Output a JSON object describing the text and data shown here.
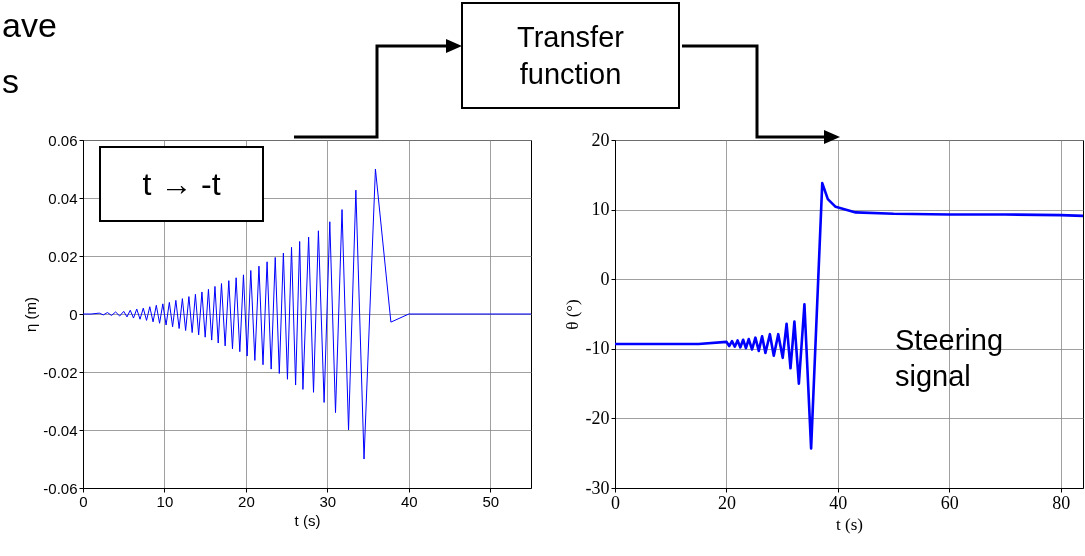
{
  "chart_data": [
    {
      "type": "line",
      "xlabel": "t (s)",
      "ylabel": "η (m)",
      "xlim": [
        0,
        55
      ],
      "ylim": [
        -0.06,
        0.06
      ],
      "xticks": [
        0,
        10,
        20,
        30,
        40,
        50
      ],
      "yticks": [
        -0.06,
        -0.04,
        -0.02,
        0,
        0.02,
        0.04,
        0.06
      ],
      "grid": true,
      "annotations": [
        "ave",
        "s",
        "t → -t",
        "Transfer function"
      ],
      "series": [
        {
          "color": "#0000ff",
          "x": [
            0,
            1,
            2.0,
            2.5,
            3.0,
            3.5,
            4.0,
            4.5,
            5.0,
            5.4,
            5.8,
            6.2,
            6.6,
            7.0,
            7.4,
            7.8,
            8.2,
            8.6,
            9.0,
            9.4,
            9.8,
            10.2,
            10.6,
            11.0,
            11.4,
            11.8,
            12.2,
            12.6,
            13.0,
            13.4,
            13.8,
            14.2,
            14.6,
            15.0,
            15.4,
            15.8,
            16.2,
            16.6,
            17.0,
            17.45,
            17.9,
            18.35,
            18.8,
            19.25,
            19.7,
            20.15,
            20.6,
            21.1,
            21.6,
            22.1,
            22.6,
            23.1,
            23.6,
            24.1,
            24.6,
            25.1,
            25.6,
            26.1,
            26.6,
            27.0,
            27.7,
            28.3,
            28.9,
            29.6,
            30.3,
            31.0,
            31.8,
            32.6,
            33.5,
            34.5,
            35.9,
            37.8,
            40,
            55
          ],
          "values": [
            0,
            0,
            0.0003,
            -0.0003,
            0.0005,
            -0.0005,
            0.0007,
            -0.0007,
            0.0009,
            -0.001,
            0.0013,
            -0.0014,
            0.0017,
            -0.0018,
            0.002,
            -0.0022,
            0.0025,
            -0.0027,
            0.003,
            -0.0032,
            0.0035,
            -0.0038,
            0.004,
            -0.0044,
            0.0047,
            -0.005,
            0.0053,
            -0.0057,
            0.006,
            -0.0064,
            0.0068,
            -0.0072,
            0.0076,
            -0.008,
            0.0085,
            -0.009,
            0.0095,
            -0.01,
            0.0105,
            -0.011,
            0.0115,
            -0.012,
            0.0125,
            -0.013,
            0.0135,
            -0.0145,
            0.015,
            -0.016,
            0.0165,
            -0.0175,
            0.018,
            -0.019,
            0.0195,
            -0.0205,
            0.021,
            -0.0225,
            0.023,
            -0.0245,
            0.025,
            -0.026,
            0.0265,
            -0.027,
            0.0287,
            -0.0305,
            0.0318,
            -0.034,
            0.036,
            -0.04,
            0.0427,
            -0.05,
            0.05,
            -0.0028,
            0,
            0
          ]
        }
      ]
    },
    {
      "type": "line",
      "xlabel": "t (s)",
      "ylabel": "θ (°)",
      "xlim": [
        0,
        84
      ],
      "ylim": [
        -30,
        20
      ],
      "xticks": [
        0,
        20,
        40,
        60,
        80
      ],
      "yticks": [
        -30,
        -20,
        -10,
        0,
        10,
        20
      ],
      "grid": true,
      "annotations": [
        "Steering signal"
      ],
      "series": [
        {
          "color": "#0000ff",
          "x": [
            0,
            15,
            20.0,
            20.5,
            21.0,
            21.5,
            22.0,
            22.5,
            23.0,
            23.5,
            24.0,
            24.6,
            25.2,
            25.8,
            26.4,
            27.0,
            27.8,
            28.5,
            29.3,
            30.1,
            30.8,
            31.5,
            32.2,
            33.0,
            34.0,
            35.2,
            37.2,
            38.2,
            39.6,
            43.2,
            50,
            60,
            70,
            80,
            84
          ],
          "values": [
            -9.3,
            -9.3,
            -9.0,
            -9.6,
            -8.9,
            -9.7,
            -8.8,
            -9.8,
            -8.7,
            -9.9,
            -8.6,
            -10.1,
            -8.4,
            -10.3,
            -8.2,
            -10.6,
            -7.9,
            -11.0,
            -7.9,
            -11.3,
            -6.4,
            -12.8,
            -6.1,
            -15.0,
            -3.6,
            -24.3,
            13.8,
            11.5,
            10.4,
            9.6,
            9.4,
            9.3,
            9.3,
            9.2,
            9.1
          ]
        }
      ]
    }
  ]
}
